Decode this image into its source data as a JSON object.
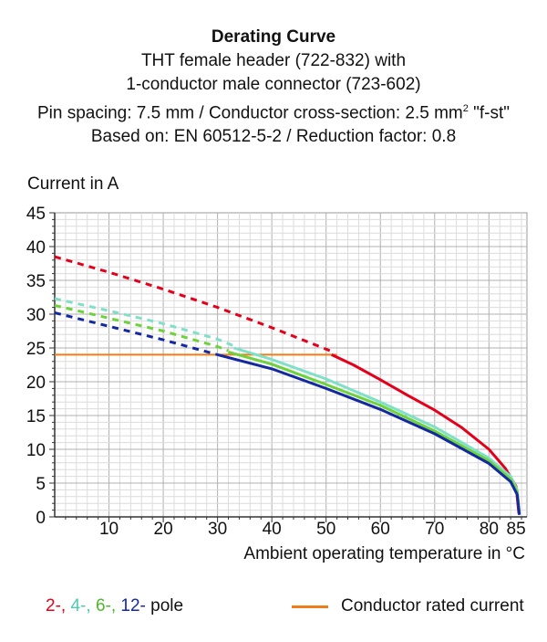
{
  "title": {
    "line1": "Derating Curve",
    "line2": "THT female header (722-832) with",
    "line3": "1-conductor male connector  (723-602)",
    "line4_a": "Pin spacing: 7.5 mm / Conductor cross-section: 2.5 mm",
    "line4_sup": "2",
    "line4_b": " \"f-st\"",
    "line5": "Based on: EN 60512-5-2 / Reduction factor: 0.8"
  },
  "legend": {
    "poles": [
      {
        "label": "2-,",
        "color": "#e3001b"
      },
      {
        "label": "4-,",
        "color": "#7fe0c8"
      },
      {
        "label": "6-,",
        "color": "#6ed23c"
      },
      {
        "label": "12-",
        "color": "#1428a0"
      }
    ],
    "pole_suffix": "pole",
    "rated_label": "Conductor rated current",
    "rated_color": "#ef7d1a"
  },
  "chart_data": {
    "type": "line",
    "ylabel": "Current in A",
    "xlabel": "Ambient operating temperature in °C",
    "xlim": [
      0,
      87
    ],
    "ylim": [
      0,
      45
    ],
    "xticks": [
      10,
      20,
      30,
      40,
      50,
      60,
      70,
      80,
      85
    ],
    "yticks": [
      0,
      5,
      10,
      15,
      20,
      25,
      30,
      35,
      40,
      45
    ],
    "grid": true,
    "series": [
      {
        "name": "2-",
        "color": "#e3001b",
        "dashed": [
          [
            0,
            38.5
          ],
          [
            10,
            36.2
          ],
          [
            20,
            33.7
          ],
          [
            30,
            31.0
          ],
          [
            40,
            28.0
          ],
          [
            51,
            24.5
          ]
        ],
        "solid": [
          [
            51,
            24.0
          ],
          [
            55,
            22.5
          ],
          [
            60,
            20.3
          ],
          [
            65,
            18.0
          ],
          [
            70,
            15.8
          ],
          [
            75,
            13.2
          ],
          [
            80,
            10.0
          ],
          [
            83,
            7.2
          ],
          [
            85,
            4.5
          ],
          [
            85.5,
            0.5
          ]
        ]
      },
      {
        "name": "4-",
        "color": "#7fe0c8",
        "dashed": [
          [
            0,
            32.3
          ],
          [
            10,
            30.5
          ],
          [
            20,
            28.6
          ],
          [
            30,
            26.3
          ],
          [
            33,
            25.3
          ]
        ],
        "solid": [
          [
            33,
            25.0
          ],
          [
            40,
            23.3
          ],
          [
            50,
            20.4
          ],
          [
            60,
            17.0
          ],
          [
            70,
            13.3
          ],
          [
            80,
            8.7
          ],
          [
            84,
            6.0
          ],
          [
            85.2,
            4.0
          ],
          [
            85.6,
            0.5
          ]
        ]
      },
      {
        "name": "6-",
        "color": "#6ed23c",
        "dashed": [
          [
            0,
            31.3
          ],
          [
            10,
            29.4
          ],
          [
            20,
            27.5
          ],
          [
            30,
            25.2
          ],
          [
            32,
            24.6
          ]
        ],
        "solid": [
          [
            32,
            24.4
          ],
          [
            40,
            22.6
          ],
          [
            50,
            19.6
          ],
          [
            60,
            16.5
          ],
          [
            70,
            12.7
          ],
          [
            80,
            8.3
          ],
          [
            84,
            5.6
          ],
          [
            85.2,
            3.7
          ],
          [
            85.6,
            0.5
          ]
        ]
      },
      {
        "name": "12-",
        "color": "#1428a0",
        "dashed": [
          [
            0,
            30.2
          ],
          [
            10,
            28.2
          ],
          [
            20,
            26.2
          ],
          [
            30,
            24.0
          ]
        ],
        "solid": [
          [
            30,
            24.0
          ],
          [
            40,
            21.9
          ],
          [
            50,
            19.0
          ],
          [
            60,
            15.9
          ],
          [
            70,
            12.3
          ],
          [
            80,
            7.9
          ],
          [
            84,
            5.2
          ],
          [
            85.2,
            3.3
          ],
          [
            85.6,
            0.3
          ]
        ]
      }
    ],
    "rated_current": {
      "name": "Conductor rated current",
      "color": "#ef7d1a",
      "y": 24,
      "x": [
        0,
        52
      ]
    }
  }
}
